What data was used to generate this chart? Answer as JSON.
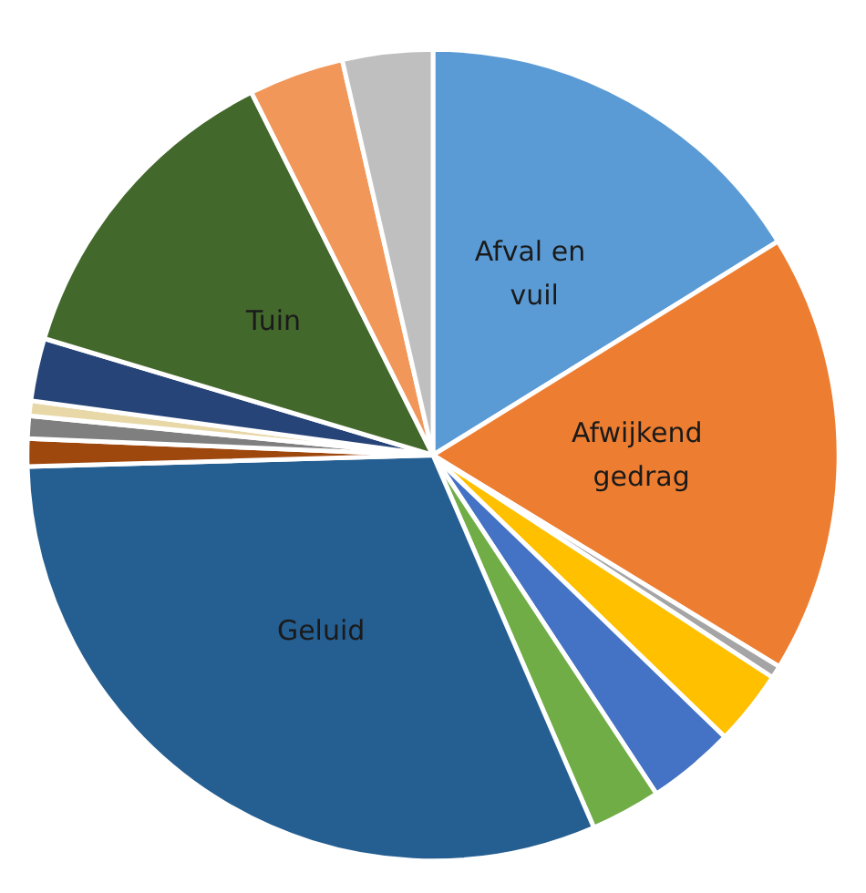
{
  "chart_data": {
    "type": "pie",
    "categories": [
      "Afval en vuil",
      "Afwijkend gedrag",
      null,
      null,
      null,
      null,
      "Geluid",
      null,
      null,
      null,
      null,
      "Tuin",
      null,
      null
    ],
    "values": [
      16.2,
      17.6,
      0.5,
      3,
      3.5,
      2.8,
      31.1,
      1.1,
      0.9,
      0.6,
      2.5,
      13,
      3.8,
      3.6
    ],
    "colors": [
      "#5b9bd5",
      "#ed7d31",
      "#a5a5a5",
      "#ffc000",
      "#4472c4",
      "#70ad47",
      "#255e91",
      "#9e480e",
      "#7f7f7f",
      "#e8d8a8",
      "#264478",
      "#43682b",
      "#f1975a",
      "#bfbfbf"
    ],
    "legend": false
  }
}
